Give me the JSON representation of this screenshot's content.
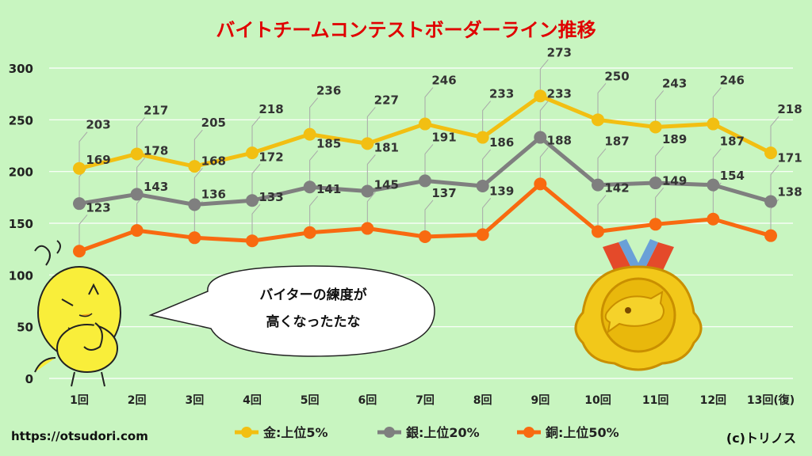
{
  "chart_data": {
    "type": "line",
    "title": "バイトチームコンテストボーダーライン推移",
    "categories": [
      "1回",
      "2回",
      "3回",
      "4回",
      "5回",
      "6回",
      "7回",
      "8回",
      "9回",
      "10回",
      "11回",
      "12回",
      "13回(復)"
    ],
    "series": [
      {
        "name": "金:上位5%",
        "color": "#f2bf12",
        "values": [
          203,
          217,
          205,
          218,
          236,
          227,
          246,
          233,
          273,
          250,
          243,
          246,
          218
        ]
      },
      {
        "name": "銀:上位20%",
        "color": "#7f7f7f",
        "values": [
          169,
          178,
          168,
          172,
          185,
          181,
          191,
          186,
          233,
          187,
          189,
          187,
          171
        ]
      },
      {
        "name": "銅:上位50%",
        "color": "#f86a10",
        "values": [
          123,
          143,
          136,
          133,
          141,
          145,
          137,
          139,
          188,
          142,
          149,
          154,
          138
        ]
      }
    ],
    "ylim": [
      0,
      300
    ],
    "yticks": [
      0,
      50,
      100,
      150,
      200,
      250,
      300
    ],
    "grid": true,
    "legend_position": "bottom"
  },
  "speech_bubble": {
    "line1": "バイターの練度が",
    "line2": "高くなったたな"
  },
  "footer": {
    "url": "https://otsudori.com",
    "credit": "(c)トリノス"
  },
  "illustrations": {
    "character": "thinking-chick-icon",
    "medal": "gold-medal-icon"
  }
}
